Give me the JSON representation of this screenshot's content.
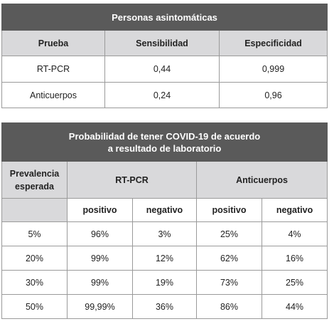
{
  "table1": {
    "title": "Personas asintomáticas",
    "headers": [
      "Prueba",
      "Sensibilidad",
      "Especificidad"
    ],
    "rows": [
      [
        "RT-PCR",
        "0,44",
        "0,999"
      ],
      [
        "Anticuerpos",
        "0,24",
        "0,96"
      ]
    ]
  },
  "table2": {
    "title_line1": "Probabilidad de tener COVID-19 de acuerdo",
    "title_line2": "a resultado de laboratorio",
    "prevalence_line1": "Prevalencia",
    "prevalence_line2": "esperada",
    "group_rtpcr": "RT-PCR",
    "group_anticuerpos": "Anticuerpos",
    "sub_headers": [
      "positivo",
      "negativo",
      "positivo",
      "negativo"
    ],
    "rows": [
      [
        "5%",
        "96%",
        "3%",
        "25%",
        "4%"
      ],
      [
        "20%",
        "99%",
        "12%",
        "62%",
        "16%"
      ],
      [
        "30%",
        "99%",
        "19%",
        "73%",
        "25%"
      ],
      [
        "50%",
        "99,99%",
        "36%",
        "86%",
        "44%"
      ]
    ]
  }
}
